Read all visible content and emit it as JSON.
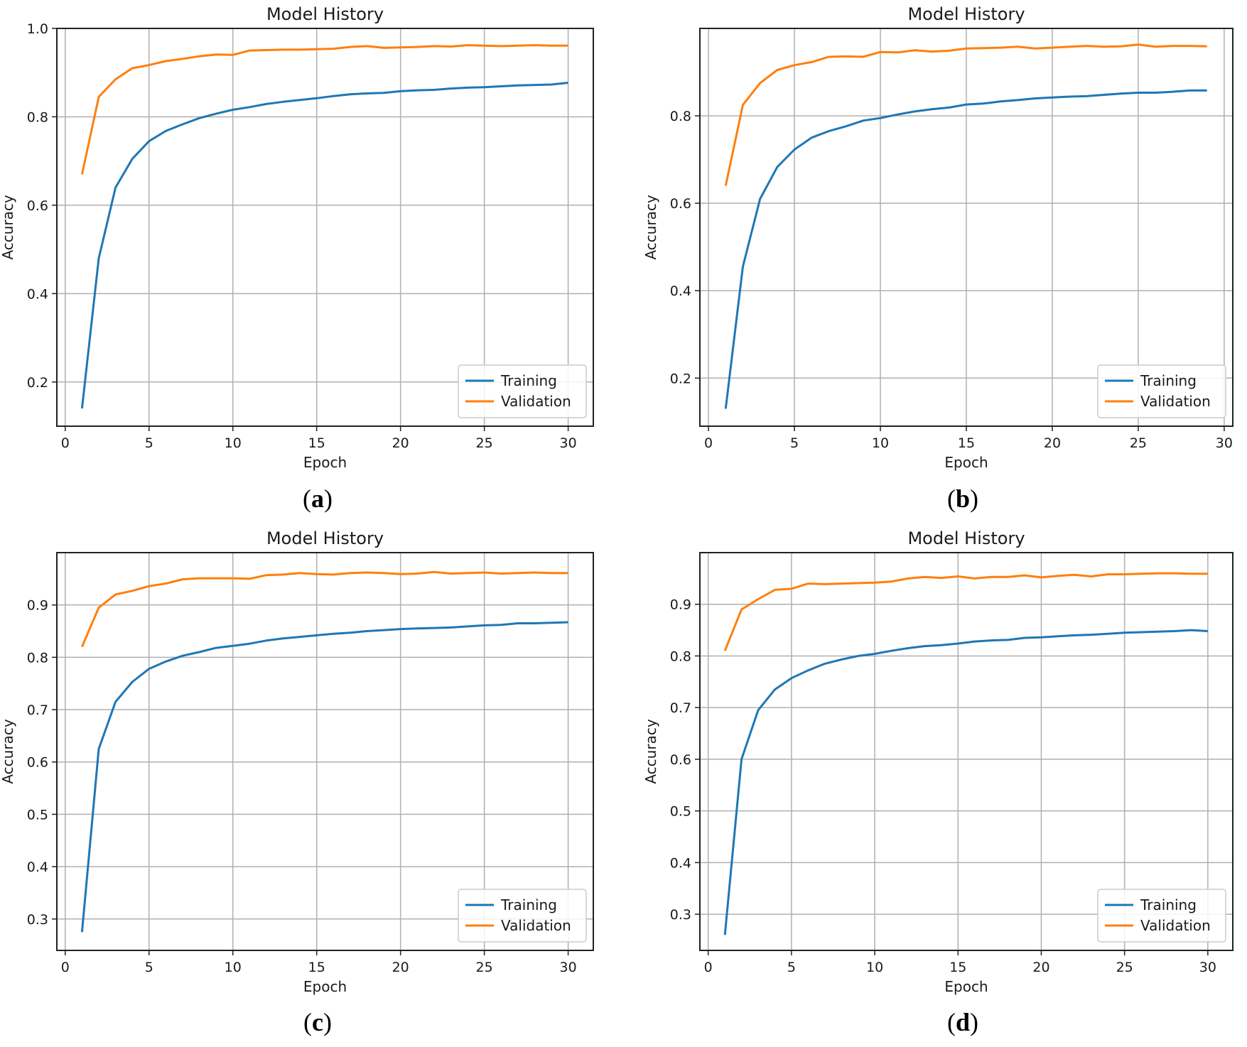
{
  "chart_data": [
    {
      "id": "a",
      "type": "line",
      "title": "Model History",
      "xlabel": "Epoch",
      "ylabel": "Accuracy",
      "xlim": [
        -0.5,
        31.5
      ],
      "ylim": [
        0.1,
        1.0
      ],
      "xticks": [
        0,
        5,
        10,
        15,
        20,
        25,
        30
      ],
      "xtick_labels": [
        "0",
        "5",
        "10",
        "15",
        "20",
        "25",
        "30"
      ],
      "yticks": [
        0.2,
        0.4,
        0.6,
        0.8,
        1.0
      ],
      "ytick_labels": [
        "0.2",
        "0.4",
        "0.6",
        "0.8",
        "1.0"
      ],
      "grid": true,
      "legend": "lower-right",
      "x": [
        1,
        2,
        3,
        4,
        5,
        6,
        7,
        8,
        9,
        10,
        11,
        12,
        13,
        14,
        15,
        16,
        17,
        18,
        19,
        20,
        21,
        22,
        23,
        24,
        25,
        26,
        27,
        28,
        29,
        30
      ],
      "series": [
        {
          "name": "Training",
          "color": "#1f77b4",
          "values": [
            0.14,
            0.48,
            0.64,
            0.705,
            0.745,
            0.768,
            0.783,
            0.797,
            0.807,
            0.816,
            0.822,
            0.829,
            0.834,
            0.838,
            0.842,
            0.847,
            0.851,
            0.853,
            0.854,
            0.858,
            0.86,
            0.861,
            0.864,
            0.866,
            0.867,
            0.869,
            0.871,
            0.872,
            0.873,
            0.877
          ]
        },
        {
          "name": "Validation",
          "color": "#ff7f0e",
          "values": [
            0.67,
            0.845,
            0.885,
            0.91,
            0.917,
            0.926,
            0.931,
            0.937,
            0.941,
            0.94,
            0.95,
            0.951,
            0.952,
            0.952,
            0.953,
            0.954,
            0.958,
            0.96,
            0.956,
            0.957,
            0.958,
            0.96,
            0.959,
            0.962,
            0.961,
            0.96,
            0.961,
            0.962,
            0.961,
            0.961
          ]
        }
      ],
      "caption": "a"
    },
    {
      "id": "b",
      "type": "line",
      "title": "Model History",
      "xlabel": "Epoch",
      "ylabel": "Accuracy",
      "xlim": [
        -0.5,
        30.5
      ],
      "ylim": [
        0.09,
        1.0
      ],
      "xticks": [
        0,
        5,
        10,
        15,
        20,
        25,
        30
      ],
      "xtick_labels": [
        "0",
        "5",
        "10",
        "15",
        "20",
        "25",
        "30"
      ],
      "yticks": [
        0.2,
        0.4,
        0.6,
        0.8
      ],
      "ytick_labels": [
        "0.2",
        "0.4",
        "0.6",
        "0.8"
      ],
      "grid": true,
      "legend": "lower-right",
      "x": [
        1,
        2,
        3,
        4,
        5,
        6,
        7,
        8,
        9,
        10,
        11,
        12,
        13,
        14,
        15,
        16,
        17,
        18,
        19,
        20,
        21,
        22,
        23,
        24,
        25,
        26,
        27,
        28,
        29
      ],
      "series": [
        {
          "name": "Training",
          "color": "#1f77b4",
          "values": [
            0.13,
            0.455,
            0.61,
            0.683,
            0.723,
            0.75,
            0.765,
            0.776,
            0.789,
            0.795,
            0.803,
            0.81,
            0.815,
            0.819,
            0.826,
            0.828,
            0.833,
            0.836,
            0.84,
            0.842,
            0.844,
            0.845,
            0.848,
            0.851,
            0.853,
            0.853,
            0.855,
            0.858,
            0.858
          ]
        },
        {
          "name": "Validation",
          "color": "#ff7f0e",
          "values": [
            0.64,
            0.825,
            0.875,
            0.905,
            0.916,
            0.923,
            0.935,
            0.936,
            0.935,
            0.946,
            0.945,
            0.95,
            0.947,
            0.949,
            0.954,
            0.955,
            0.956,
            0.958,
            0.954,
            0.956,
            0.958,
            0.96,
            0.958,
            0.959,
            0.963,
            0.958,
            0.96,
            0.96,
            0.959
          ]
        }
      ],
      "caption": "b"
    },
    {
      "id": "c",
      "type": "line",
      "title": "Model History",
      "xlabel": "Epoch",
      "ylabel": "Accuracy",
      "xlim": [
        -0.5,
        31.5
      ],
      "ylim": [
        0.24,
        1.0
      ],
      "xticks": [
        0,
        5,
        10,
        15,
        20,
        25,
        30
      ],
      "xtick_labels": [
        "0",
        "5",
        "10",
        "15",
        "20",
        "25",
        "30"
      ],
      "yticks": [
        0.3,
        0.4,
        0.5,
        0.6,
        0.7,
        0.8,
        0.9
      ],
      "ytick_labels": [
        "0.3",
        "0.4",
        "0.5",
        "0.6",
        "0.7",
        "0.8",
        "0.9"
      ],
      "grid": true,
      "legend": "lower-right",
      "x": [
        1,
        2,
        3,
        4,
        5,
        6,
        7,
        8,
        9,
        10,
        11,
        12,
        13,
        14,
        15,
        16,
        17,
        18,
        19,
        20,
        21,
        22,
        23,
        24,
        25,
        26,
        27,
        28,
        29,
        30
      ],
      "series": [
        {
          "name": "Training",
          "color": "#1f77b4",
          "values": [
            0.275,
            0.625,
            0.715,
            0.753,
            0.778,
            0.792,
            0.803,
            0.81,
            0.818,
            0.822,
            0.826,
            0.832,
            0.836,
            0.839,
            0.842,
            0.845,
            0.847,
            0.85,
            0.852,
            0.854,
            0.855,
            0.856,
            0.857,
            0.859,
            0.861,
            0.862,
            0.865,
            0.865,
            0.866,
            0.867
          ]
        },
        {
          "name": "Validation",
          "color": "#ff7f0e",
          "values": [
            0.82,
            0.895,
            0.92,
            0.927,
            0.936,
            0.941,
            0.949,
            0.951,
            0.951,
            0.951,
            0.95,
            0.957,
            0.958,
            0.961,
            0.959,
            0.958,
            0.961,
            0.962,
            0.961,
            0.959,
            0.96,
            0.963,
            0.96,
            0.961,
            0.962,
            0.96,
            0.961,
            0.962,
            0.961,
            0.961
          ]
        }
      ],
      "caption": "c"
    },
    {
      "id": "d",
      "type": "line",
      "title": "Model History",
      "xlabel": "Epoch",
      "ylabel": "Accuracy",
      "xlim": [
        -0.5,
        31.5
      ],
      "ylim": [
        0.23,
        1.0
      ],
      "xticks": [
        0,
        5,
        10,
        15,
        20,
        25,
        30
      ],
      "xtick_labels": [
        "0",
        "5",
        "10",
        "15",
        "20",
        "25",
        "30"
      ],
      "yticks": [
        0.3,
        0.4,
        0.5,
        0.6,
        0.7,
        0.8,
        0.9
      ],
      "ytick_labels": [
        "0.3",
        "0.4",
        "0.5",
        "0.6",
        "0.7",
        "0.8",
        "0.9"
      ],
      "grid": true,
      "legend": "lower-right",
      "x": [
        1,
        2,
        3,
        4,
        5,
        6,
        7,
        8,
        9,
        10,
        11,
        12,
        13,
        14,
        15,
        16,
        17,
        18,
        19,
        20,
        21,
        22,
        23,
        24,
        25,
        26,
        27,
        28,
        29,
        30
      ],
      "series": [
        {
          "name": "Training",
          "color": "#1f77b4",
          "values": [
            0.26,
            0.6,
            0.695,
            0.735,
            0.757,
            0.772,
            0.785,
            0.793,
            0.8,
            0.804,
            0.81,
            0.815,
            0.819,
            0.821,
            0.824,
            0.828,
            0.83,
            0.831,
            0.835,
            0.836,
            0.838,
            0.84,
            0.841,
            0.843,
            0.845,
            0.846,
            0.847,
            0.848,
            0.85,
            0.848
          ]
        },
        {
          "name": "Validation",
          "color": "#ff7f0e",
          "values": [
            0.81,
            0.89,
            0.91,
            0.928,
            0.93,
            0.94,
            0.939,
            0.94,
            0.941,
            0.942,
            0.944,
            0.95,
            0.953,
            0.951,
            0.954,
            0.95,
            0.953,
            0.953,
            0.956,
            0.952,
            0.955,
            0.957,
            0.954,
            0.958,
            0.958,
            0.959,
            0.96,
            0.96,
            0.959,
            0.959
          ]
        }
      ],
      "caption": "d"
    }
  ]
}
